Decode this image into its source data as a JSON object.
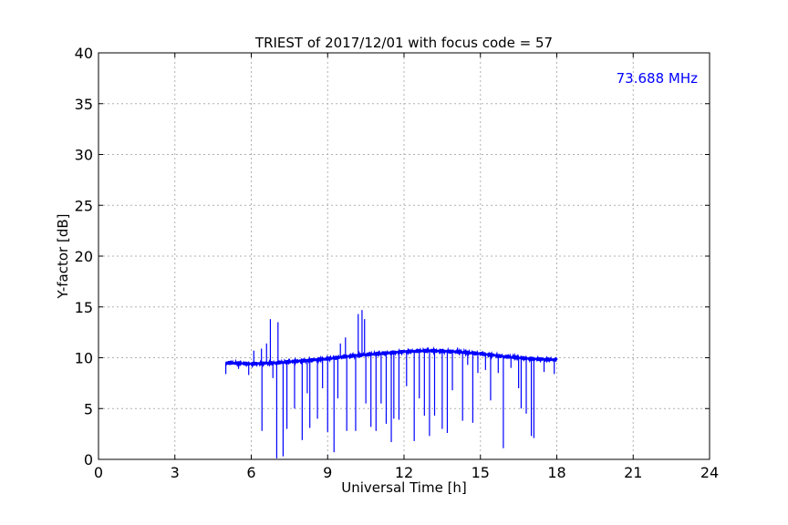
{
  "chart_data": {
    "type": "line",
    "title": "TRIEST of 2017/12/01 with focus code = 57",
    "xlabel": "Universal Time [h]",
    "ylabel": "Y-factor [dB]",
    "xlim": [
      0,
      24
    ],
    "ylim": [
      0,
      40
    ],
    "xticks": [
      "0",
      "3",
      "6",
      "9",
      "12",
      "15",
      "18",
      "21",
      "24"
    ],
    "yticks": [
      "0",
      "5",
      "10",
      "15",
      "20",
      "25",
      "30",
      "35",
      "40"
    ],
    "grid": true,
    "annotation": "73.688 MHz",
    "annotation_position": "top-right",
    "series_color": "#0000ff",
    "series": [
      {
        "baseline": {
          "x": [
            5.0,
            6.0,
            7.0,
            8.0,
            9.0,
            10.0,
            11.0,
            12.0,
            13.0,
            14.0,
            15.0,
            16.0,
            17.0,
            18.0
          ],
          "y": [
            9.5,
            9.4,
            9.5,
            9.7,
            9.9,
            10.2,
            10.4,
            10.6,
            10.7,
            10.6,
            10.4,
            10.1,
            9.9,
            9.8
          ]
        },
        "spikes": [
          {
            "x": 5.0,
            "y": 8.4
          },
          {
            "x": 5.5,
            "y": 8.9
          },
          {
            "x": 5.9,
            "y": 8.3
          },
          {
            "x": 6.1,
            "y": 10.7
          },
          {
            "x": 6.4,
            "y": 10.9
          },
          {
            "x": 6.42,
            "y": 2.8
          },
          {
            "x": 6.6,
            "y": 11.4
          },
          {
            "x": 6.75,
            "y": 13.8
          },
          {
            "x": 6.85,
            "y": 8.0
          },
          {
            "x": 7.05,
            "y": 13.5
          },
          {
            "x": 7.0,
            "y": 0.1
          },
          {
            "x": 7.25,
            "y": 0.3
          },
          {
            "x": 7.4,
            "y": 3.0
          },
          {
            "x": 7.7,
            "y": 5.0
          },
          {
            "x": 8.0,
            "y": 1.9
          },
          {
            "x": 8.2,
            "y": 6.5
          },
          {
            "x": 8.3,
            "y": 3.1
          },
          {
            "x": 8.6,
            "y": 4.0
          },
          {
            "x": 8.8,
            "y": 7.0
          },
          {
            "x": 9.0,
            "y": 2.7
          },
          {
            "x": 9.25,
            "y": 0.7
          },
          {
            "x": 9.4,
            "y": 6.0
          },
          {
            "x": 9.5,
            "y": 11.4
          },
          {
            "x": 9.7,
            "y": 12.0
          },
          {
            "x": 9.75,
            "y": 2.8
          },
          {
            "x": 10.1,
            "y": 2.8
          },
          {
            "x": 10.2,
            "y": 14.3
          },
          {
            "x": 10.35,
            "y": 14.7
          },
          {
            "x": 10.45,
            "y": 13.8
          },
          {
            "x": 10.5,
            "y": 5.5
          },
          {
            "x": 10.7,
            "y": 3.2
          },
          {
            "x": 10.9,
            "y": 2.8
          },
          {
            "x": 11.1,
            "y": 5.5
          },
          {
            "x": 11.3,
            "y": 3.5
          },
          {
            "x": 11.5,
            "y": 1.7
          },
          {
            "x": 11.6,
            "y": 4.0
          },
          {
            "x": 11.8,
            "y": 3.9
          },
          {
            "x": 12.1,
            "y": 7.2
          },
          {
            "x": 12.4,
            "y": 1.8
          },
          {
            "x": 12.6,
            "y": 6.0
          },
          {
            "x": 12.8,
            "y": 4.3
          },
          {
            "x": 13.0,
            "y": 2.3
          },
          {
            "x": 13.2,
            "y": 4.3
          },
          {
            "x": 13.5,
            "y": 3.0
          },
          {
            "x": 13.7,
            "y": 2.6
          },
          {
            "x": 13.9,
            "y": 6.8
          },
          {
            "x": 14.1,
            "y": 11.0
          },
          {
            "x": 14.3,
            "y": 3.8
          },
          {
            "x": 14.5,
            "y": 9.3
          },
          {
            "x": 14.7,
            "y": 3.6
          },
          {
            "x": 14.9,
            "y": 8.5
          },
          {
            "x": 15.2,
            "y": 8.8
          },
          {
            "x": 15.4,
            "y": 5.8
          },
          {
            "x": 15.7,
            "y": 8.5
          },
          {
            "x": 15.9,
            "y": 1.1
          },
          {
            "x": 16.2,
            "y": 9.0
          },
          {
            "x": 16.5,
            "y": 7.0
          },
          {
            "x": 16.6,
            "y": 5.0
          },
          {
            "x": 16.8,
            "y": 4.5
          },
          {
            "x": 17.0,
            "y": 2.3
          },
          {
            "x": 17.1,
            "y": 2.1
          },
          {
            "x": 17.3,
            "y": 9.8
          },
          {
            "x": 17.5,
            "y": 8.6
          },
          {
            "x": 17.9,
            "y": 8.4
          }
        ]
      }
    ]
  }
}
